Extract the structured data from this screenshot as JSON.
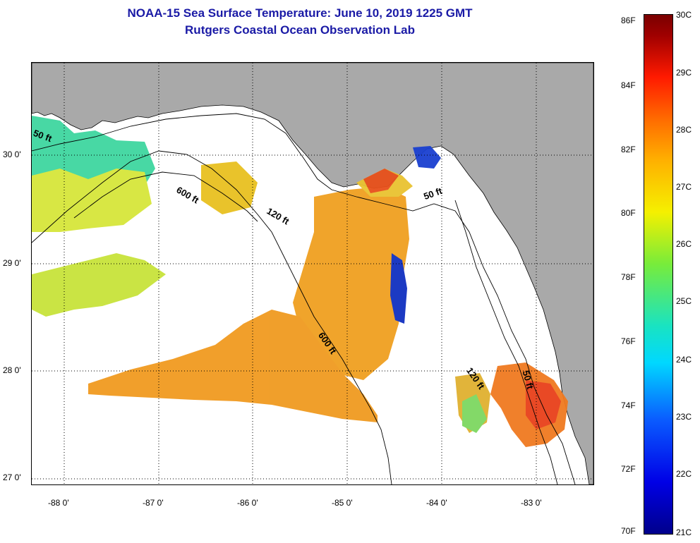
{
  "title": {
    "line1": "NOAA-15 Sea Surface Temperature:  June 10, 2019 1225 GMT",
    "line2": "Rutgers Coastal Ocean Observation Lab"
  },
  "map": {
    "lon_labels": [
      "-88 0'",
      "-87 0'",
      "-86 0'",
      "-85 0'",
      "-84 0'",
      "-83 0'"
    ],
    "lat_labels": [
      "30 0'",
      "29 0'",
      "28 0'",
      "27 0'"
    ],
    "contour_labels": [
      "50 ft",
      "600 ft",
      "120 ft",
      "50 ft",
      "600 ft",
      "120 ft",
      "50 ft"
    ],
    "colors": {
      "land": "#a9a9a9",
      "water_no_data": "#ffffff",
      "grid": "#000000"
    }
  },
  "colorbar": {
    "fahrenheit": [
      "86F",
      "84F",
      "82F",
      "80F",
      "78F",
      "76F",
      "74F",
      "72F",
      "70F"
    ],
    "celsius": [
      "30C",
      "29C",
      "28C",
      "27C",
      "26C",
      "25C",
      "24C",
      "23C",
      "22C",
      "21C"
    ],
    "range_f": [
      70,
      86
    ],
    "range_c": [
      21,
      30
    ]
  }
}
